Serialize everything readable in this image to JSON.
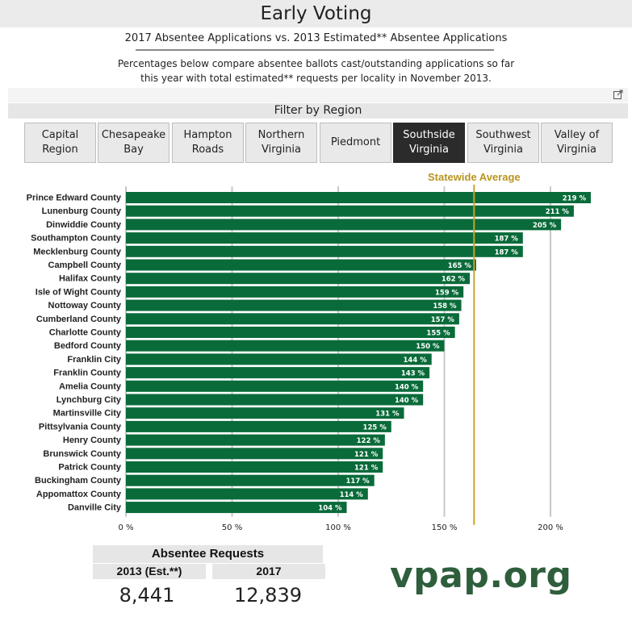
{
  "header": {
    "title": "Early Voting",
    "subtitle": "2017 Absentee Applications vs. 2013 Estimated** Absentee Applications",
    "note_line1": "Percentages below compare absentee ballots cast/outstanding applications so far",
    "note_line2": "this year with total estimated** requests per locality in November 2013."
  },
  "filter": {
    "label": "Filter by Region",
    "regions": [
      {
        "label": "Capital\nRegion",
        "selected": false
      },
      {
        "label": "Chesapeake\nBay",
        "selected": false
      },
      {
        "label": "Hampton\nRoads",
        "selected": false
      },
      {
        "label": "Northern\nVirginia",
        "selected": false
      },
      {
        "label": "Piedmont",
        "selected": false
      },
      {
        "label": "Southside\nVirginia",
        "selected": true
      },
      {
        "label": "Southwest\nVirginia",
        "selected": false
      },
      {
        "label": "Valley of\nVirginia",
        "selected": false
      }
    ]
  },
  "chart_data": {
    "type": "bar",
    "orientation": "horizontal",
    "title": "",
    "xlabel": "",
    "ylabel": "",
    "xlim": [
      0,
      220
    ],
    "x_ticks": [
      {
        "value": 0,
        "label": "0 %"
      },
      {
        "value": 50,
        "label": "50 %"
      },
      {
        "value": 100,
        "label": "100 %"
      },
      {
        "value": 150,
        "label": "150 %"
      },
      {
        "value": 200,
        "label": "200 %"
      }
    ],
    "grid": true,
    "reference_line": {
      "label": "Statewide Average",
      "value": 164,
      "color": "#c9a227"
    },
    "bar_color": "#0a6b3a",
    "categories": [
      "Prince Edward County",
      "Lunenburg County",
      "Dinwiddie County",
      "Southampton County",
      "Mecklenburg County",
      "Campbell County",
      "Halifax County",
      "Isle of Wight County",
      "Nottoway County",
      "Cumberland County",
      "Charlotte County",
      "Bedford County",
      "Franklin City",
      "Franklin County",
      "Amelia County",
      "Lynchburg City",
      "Martinsville City",
      "Pittsylvania County",
      "Henry County",
      "Brunswick County",
      "Patrick County",
      "Buckingham County",
      "Appomattox County",
      "Danville City"
    ],
    "values": [
      219,
      211,
      205,
      187,
      187,
      165,
      162,
      159,
      158,
      157,
      155,
      150,
      144,
      143,
      140,
      140,
      131,
      125,
      122,
      121,
      121,
      117,
      114,
      104
    ],
    "value_labels": [
      "219 %",
      "211 %",
      "205 %",
      "187 %",
      "187 %",
      "165 %",
      "162 %",
      "159 %",
      "158 %",
      "157 %",
      "155 %",
      "150 %",
      "144 %",
      "143 %",
      "140 %",
      "140 %",
      "131 %",
      "125 %",
      "122 %",
      "121 %",
      "121 %",
      "117 %",
      "114 %",
      "104 %"
    ]
  },
  "requests": {
    "title": "Absentee Requests",
    "col1_label": "2013 (Est.**)",
    "col1_value": "8,441",
    "col2_label": "2017",
    "col2_value": "12,839"
  },
  "brand": {
    "text": "vpap.org",
    "color": "#2e5e3c"
  }
}
